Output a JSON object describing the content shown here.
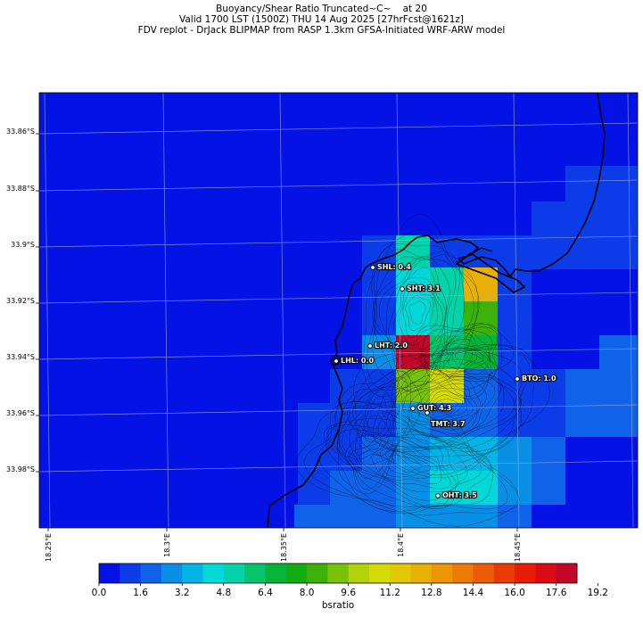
{
  "title": {
    "line1": "Buoyancy/Shear Ratio Truncated~C~    at 20",
    "line2": "Valid 1700 LST (1500Z) THU 14 Aug 2025 [27hrFcst@1621z]",
    "line3": "FDV replot - DrJack BLIPMAP from RASP 1.3km GFSA-Initiated WRF-ARW model"
  },
  "lat_labels": [
    "33.86°S",
    "33.88°S",
    "33.9°S",
    "33.92°S",
    "33.94°S",
    "33.96°S",
    "33.98°S"
  ],
  "lon_labels": [
    "18.25°E",
    "18.3°E",
    "18.35°E",
    "18.4°E",
    "18.45°E"
  ],
  "stations": [
    {
      "id": "SHL",
      "label": "SHL: 0.4",
      "value": 0.4
    },
    {
      "id": "SHT",
      "label": "SHT: 3.1",
      "value": 3.1
    },
    {
      "id": "LHT",
      "label": "LHT: 2.0",
      "value": 2.0
    },
    {
      "id": "LHL",
      "label": "LHL: 0.0",
      "value": 0.0
    },
    {
      "id": "BTO",
      "label": "BTO: 1.0",
      "value": 1.0
    },
    {
      "id": "GUT",
      "label": "GUT: 4.3",
      "value": 4.3
    },
    {
      "id": "TMT",
      "label": "TMT: 3.7",
      "value": 3.7
    },
    {
      "id": "OHT",
      "label": "OHT: 3.5",
      "value": 3.5
    }
  ],
  "colorbar": {
    "label": "bsratio",
    "min": 0.0,
    "max": 20.0,
    "step": 0.8,
    "tick_labels": [
      "0.0",
      "1.6",
      "3.2",
      "4.8",
      "6.4",
      "8.0",
      "9.6",
      "11.2",
      "12.8",
      "14.4",
      "16.0",
      "17.6",
      "19.2"
    ],
    "colors": [
      "#0412e6",
      "#0b3ce8",
      "#0f63e8",
      "#0990e6",
      "#05b4e6",
      "#03d8d8",
      "#04d2a8",
      "#06c46c",
      "#06b438",
      "#13ad13",
      "#3cb10a",
      "#78c20a",
      "#b2d20a",
      "#d6da04",
      "#e2c804",
      "#e8b004",
      "#ec9604",
      "#ec7a04",
      "#ec5c04",
      "#e83c04",
      "#e61c04",
      "#dc0a14",
      "#c2072a"
    ]
  },
  "colors": {
    "background": "#0412e6",
    "coastline": "#000000",
    "contour": "#000000",
    "grid": "#9aa8e8"
  }
}
